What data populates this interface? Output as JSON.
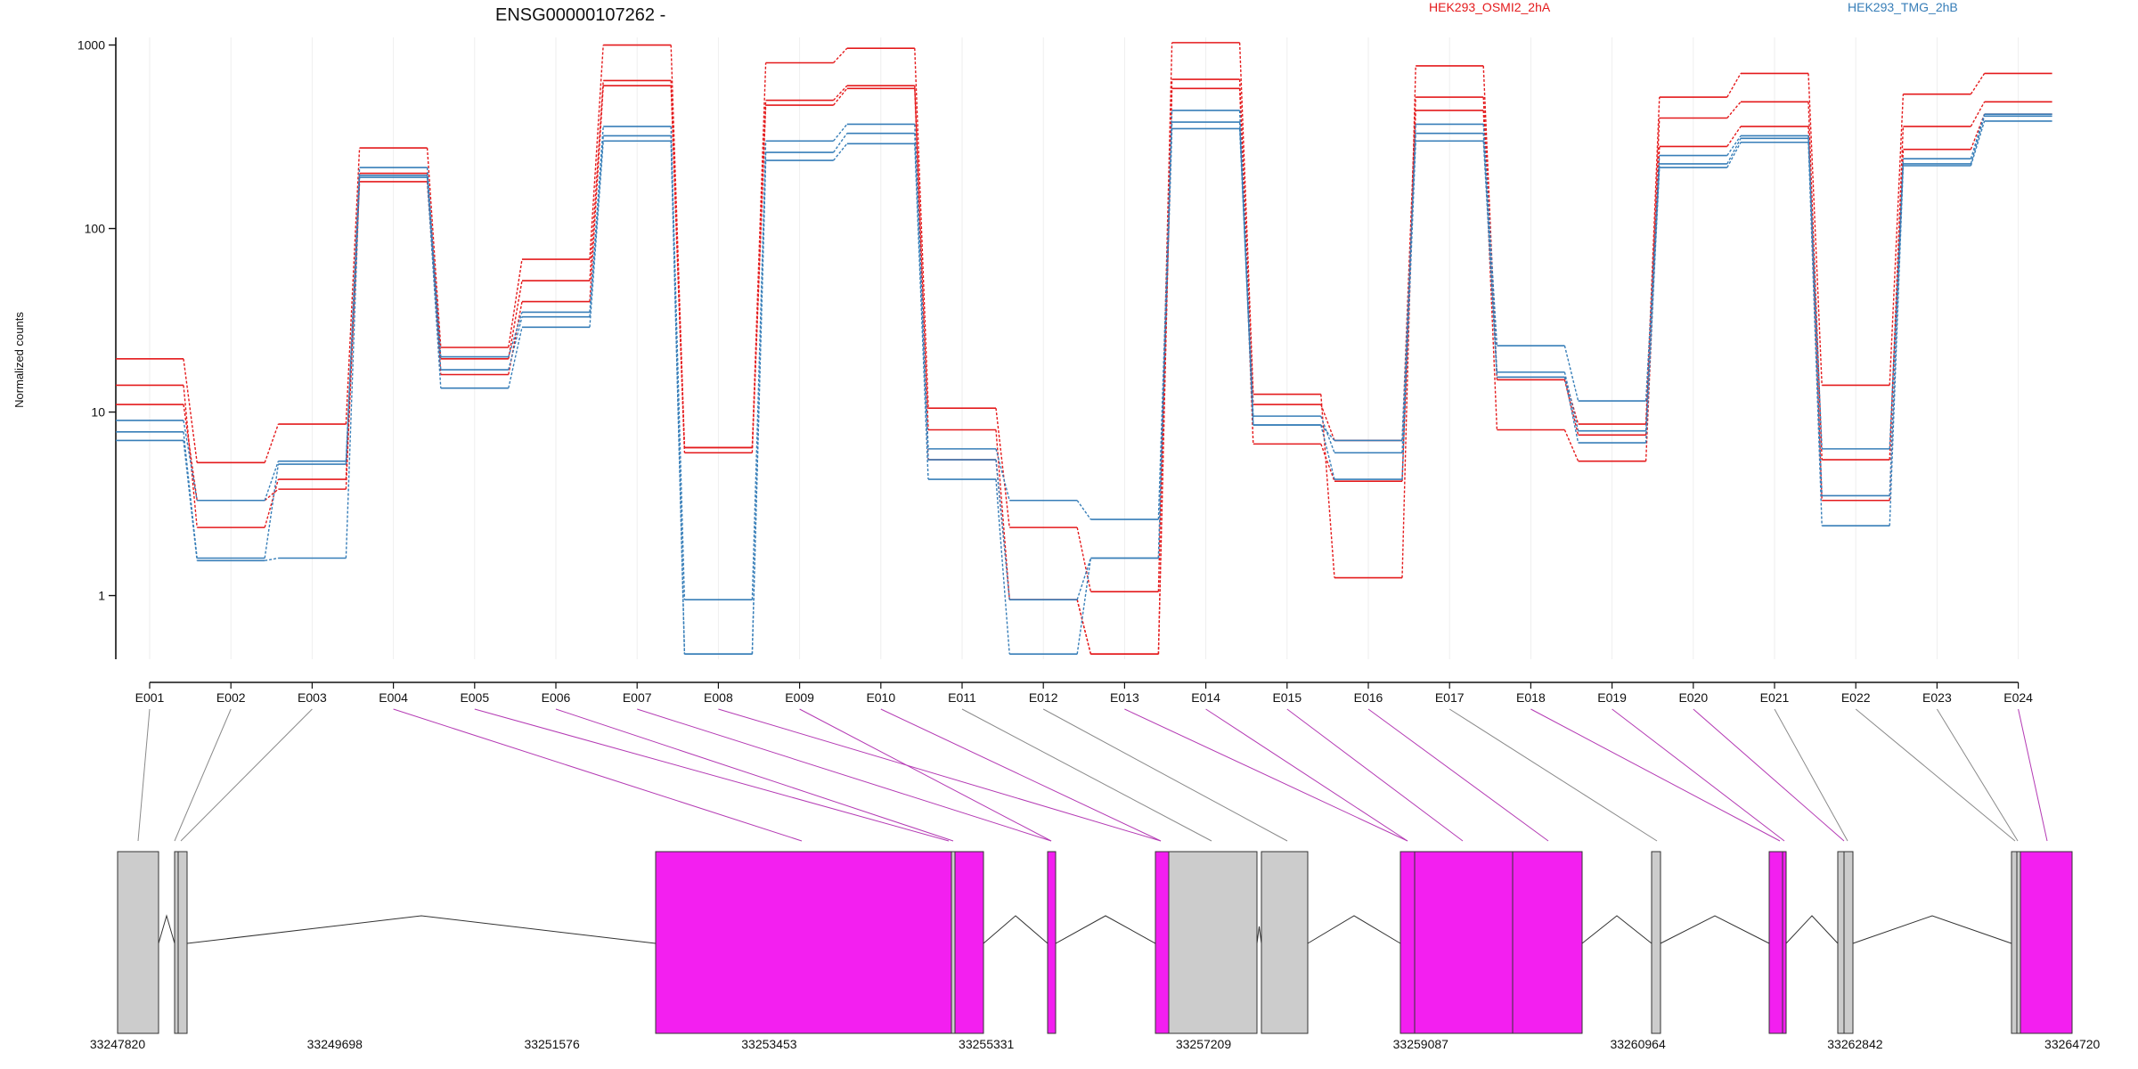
{
  "chart_data": {
    "type": "line",
    "title": "ENSG00000107262 -",
    "ylabel": "Normalized counts",
    "y_scale": "log",
    "ylim": [
      0.45,
      1100
    ],
    "y_ticks": [
      1,
      10,
      100,
      1000
    ],
    "y_tick_labels": [
      "1",
      "10",
      "100",
      "1000"
    ],
    "categories": [
      "E001",
      "E002",
      "E003",
      "E004",
      "E005",
      "E006",
      "E007",
      "E008",
      "E009",
      "E010",
      "E011",
      "E012",
      "E013",
      "E014",
      "E015",
      "E016",
      "E017",
      "E018",
      "E019",
      "E020",
      "E021",
      "E022",
      "E023",
      "E024"
    ],
    "legend": [
      {
        "label": "HEK293_OSMI2_2hA",
        "color": "#e41a1c"
      },
      {
        "label": "HEK293_TMG_2hB",
        "color": "#377eb8"
      }
    ],
    "series": [
      {
        "group": "HEK293_OSMI2_2hA",
        "color": "#e41a1c",
        "values": [
          19.5,
          5.3,
          8.6,
          275,
          22.5,
          68,
          1000,
          6.4,
          800,
          960,
          10.5,
          2.35,
          1.05,
          1030,
          12.5,
          1.25,
          770,
          15.5,
          8.6,
          520,
          700,
          14,
          540,
          700
        ]
      },
      {
        "group": "HEK293_OSMI2_2hA",
        "color": "#e41a1c",
        "values": [
          14,
          2.35,
          4.3,
          200,
          19.5,
          52,
          640,
          6.4,
          500,
          600,
          8,
          0.95,
          0.48,
          650,
          11,
          7,
          520,
          15,
          7.5,
          400,
          490,
          5.5,
          360,
          490
        ]
      },
      {
        "group": "HEK293_OSMI2_2hA",
        "color": "#e41a1c",
        "values": [
          11,
          3.3,
          3.8,
          180,
          16,
          40,
          600,
          6.0,
          470,
          580,
          5.5,
          0.95,
          0.48,
          580,
          6.7,
          4.2,
          440,
          8,
          5.4,
          280,
          360,
          3.3,
          270,
          420
        ]
      },
      {
        "group": "HEK293_TMG_2hB",
        "color": "#377eb8",
        "values": [
          9,
          3.3,
          5.4,
          215,
          20,
          35,
          360,
          0.95,
          300,
          370,
          6.3,
          3.3,
          2.6,
          440,
          9.5,
          6,
          370,
          23,
          11.5,
          250,
          320,
          6.3,
          240,
          420
        ]
      },
      {
        "group": "HEK293_TMG_2hB",
        "color": "#377eb8",
        "values": [
          7.8,
          1.6,
          5.2,
          195,
          17,
          33,
          320,
          0.48,
          260,
          330,
          5.5,
          0.95,
          1.6,
          380,
          8.5,
          7,
          330,
          16.5,
          7.9,
          225,
          310,
          3.5,
          225,
          410
        ]
      },
      {
        "group": "HEK293_TMG_2hB",
        "color": "#377eb8",
        "values": [
          7,
          1.55,
          1.6,
          190,
          13.5,
          29,
          300,
          0.48,
          235,
          290,
          4.3,
          0.48,
          1.6,
          350,
          8.5,
          4.3,
          300,
          15.5,
          6.8,
          215,
          295,
          2.4,
          220,
          385
        ]
      }
    ],
    "gene_model": {
      "coord_ticks": [
        "33247820",
        "33249698",
        "33251576",
        "33253453",
        "33255331",
        "33257209",
        "33259087",
        "33260964",
        "33262842",
        "33264720"
      ],
      "fill_tested": "#cccccc",
      "fill_significant": "#f31ff0",
      "significant_exons": [
        "E004",
        "E005",
        "E006",
        "E007",
        "E008",
        "E009",
        "E010",
        "E013",
        "E014",
        "E015",
        "E016",
        "E018",
        "E019",
        "E020",
        "E024"
      ]
    }
  }
}
